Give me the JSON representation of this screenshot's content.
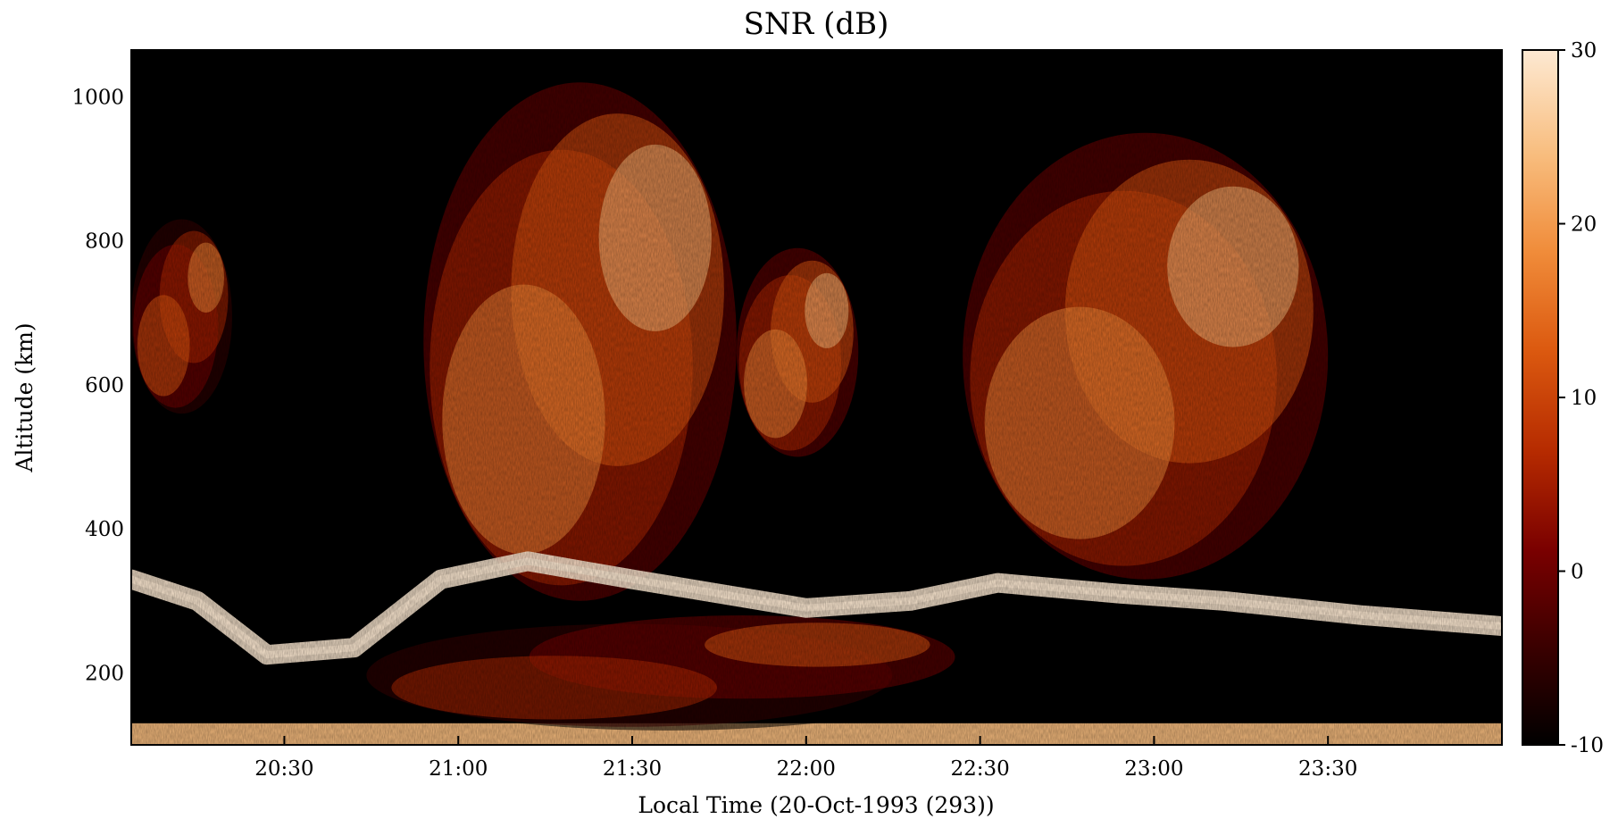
{
  "chart_data": {
    "type": "heatmap",
    "title": "SNR (dB)",
    "xlabel": "Local Time (20-Oct-1993 (293))",
    "ylabel": "Altitude (km)",
    "x_ticks": [
      "20:30",
      "21:00",
      "21:30",
      "22:00",
      "22:30",
      "23:00",
      "23:30"
    ],
    "x_tick_hours": [
      20.5,
      21.0,
      21.5,
      22.0,
      22.5,
      23.0,
      23.5
    ],
    "xlim_hours": [
      20.06,
      24.0
    ],
    "y_ticks": [
      "200",
      "400",
      "600",
      "800",
      "1000"
    ],
    "y_tick_values": [
      200,
      400,
      600,
      800,
      1000
    ],
    "ylim": [
      100,
      1065
    ],
    "colorbar": {
      "label": "SNR (dB)",
      "ticks": [
        "-10",
        "0",
        "10",
        "20",
        "30"
      ],
      "tick_values": [
        -10,
        0,
        10,
        20,
        30
      ],
      "range": [
        -10,
        30
      ],
      "colormap": [
        "#000000",
        "#3a0000",
        "#7a0000",
        "#b52a00",
        "#dc5a10",
        "#f08c3a",
        "#f8bd7e",
        "#fde9d2"
      ]
    },
    "description_features": [
      {
        "name": "bottom-layer",
        "time": [
          20.06,
          24.0
        ],
        "alt": [
          100,
          130
        ],
        "snr": 22
      },
      {
        "name": "bottomside-spread",
        "time": [
          20.7,
          22.5
        ],
        "alt": [
          120,
          290
        ],
        "snr": 12
      },
      {
        "name": "plume-1-left",
        "time": [
          20.06,
          20.35
        ],
        "alt": [
          560,
          830
        ],
        "snr": 18
      },
      {
        "name": "plume-2",
        "time": [
          20.9,
          21.8
        ],
        "alt": [
          300,
          1020
        ],
        "snr": 26
      },
      {
        "name": "plume-3",
        "time": [
          21.8,
          22.15
        ],
        "alt": [
          500,
          790
        ],
        "snr": 24
      },
      {
        "name": "plume-4",
        "time": [
          22.45,
          23.5
        ],
        "alt": [
          330,
          950
        ],
        "snr": 27
      },
      {
        "name": "f-layer-trace",
        "time": [
          20.06,
          24.0
        ],
        "alt": [
          210,
          440
        ],
        "snr": 28
      }
    ]
  }
}
